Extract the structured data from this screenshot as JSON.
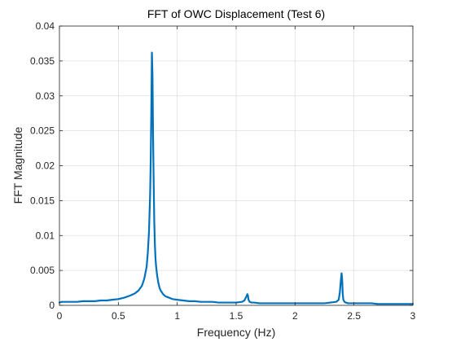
{
  "chart_data": {
    "type": "line",
    "title": "FFT of OWC Displacement (Test 6)",
    "xlabel": "Frequency (Hz)",
    "ylabel": "FFT Magnitude",
    "xlim": [
      0,
      3
    ],
    "ylim": [
      0,
      0.04
    ],
    "xticks": [
      0,
      0.5,
      1,
      1.5,
      2,
      2.5,
      3
    ],
    "xtick_labels": [
      "0",
      "0.5",
      "1",
      "1.5",
      "2",
      "2.5",
      "3"
    ],
    "yticks": [
      0,
      0.005,
      0.01,
      0.015,
      0.02,
      0.025,
      0.03,
      0.035,
      0.04
    ],
    "ytick_labels": [
      "0",
      "0.005",
      "0.01",
      "0.015",
      "0.02",
      "0.025",
      "0.03",
      "0.035",
      "0.04"
    ],
    "grid": true,
    "line_color": "#0072BD",
    "series": [
      {
        "x": [
          0.0,
          0.02,
          0.05,
          0.1,
          0.15,
          0.2,
          0.25,
          0.3,
          0.35,
          0.4,
          0.45,
          0.5,
          0.55,
          0.6,
          0.64,
          0.67,
          0.7,
          0.72,
          0.74,
          0.75,
          0.76,
          0.77,
          0.775,
          0.78,
          0.785,
          0.79,
          0.795,
          0.8,
          0.805,
          0.81,
          0.815,
          0.82,
          0.825,
          0.83,
          0.84,
          0.85,
          0.86,
          0.88,
          0.9,
          0.93,
          0.96,
          1.0,
          1.05,
          1.1,
          1.15,
          1.2,
          1.25,
          1.3,
          1.35,
          1.4,
          1.45,
          1.5,
          1.55,
          1.57,
          1.585,
          1.595,
          1.6,
          1.605,
          1.615,
          1.63,
          1.65,
          1.7,
          1.75,
          1.8,
          1.85,
          1.9,
          1.95,
          2.0,
          2.05,
          2.1,
          2.15,
          2.2,
          2.25,
          2.3,
          2.35,
          2.37,
          2.38,
          2.39,
          2.395,
          2.4,
          2.405,
          2.41,
          2.42,
          2.43,
          2.45,
          2.5,
          2.55,
          2.6,
          2.65,
          2.7,
          2.75,
          2.8,
          2.85,
          2.9,
          2.95,
          3.0
        ],
        "y": [
          0.0004,
          0.0005,
          0.0005,
          0.0005,
          0.0005,
          0.0006,
          0.0006,
          0.0006,
          0.0007,
          0.0007,
          0.0008,
          0.0009,
          0.0011,
          0.0014,
          0.0017,
          0.0021,
          0.0028,
          0.0038,
          0.0055,
          0.0075,
          0.0105,
          0.016,
          0.021,
          0.028,
          0.0362,
          0.0328,
          0.024,
          0.0175,
          0.012,
          0.0088,
          0.0068,
          0.0057,
          0.0049,
          0.0042,
          0.0032,
          0.0025,
          0.0021,
          0.0016,
          0.0013,
          0.0011,
          0.0009,
          0.0008,
          0.0007,
          0.0006,
          0.0006,
          0.0005,
          0.0005,
          0.0005,
          0.0004,
          0.0004,
          0.0004,
          0.0004,
          0.0005,
          0.0007,
          0.0012,
          0.0016,
          0.0014,
          0.0008,
          0.0005,
          0.0004,
          0.0004,
          0.0003,
          0.0003,
          0.0003,
          0.0003,
          0.0003,
          0.0003,
          0.0003,
          0.0003,
          0.0003,
          0.0003,
          0.0003,
          0.0003,
          0.0004,
          0.0005,
          0.0008,
          0.0018,
          0.0038,
          0.0046,
          0.0037,
          0.0016,
          0.0008,
          0.0005,
          0.0004,
          0.0003,
          0.0003,
          0.0003,
          0.0003,
          0.0003,
          0.0002,
          0.0002,
          0.0002,
          0.0002,
          0.0002,
          0.0002,
          0.0002
        ]
      }
    ]
  }
}
